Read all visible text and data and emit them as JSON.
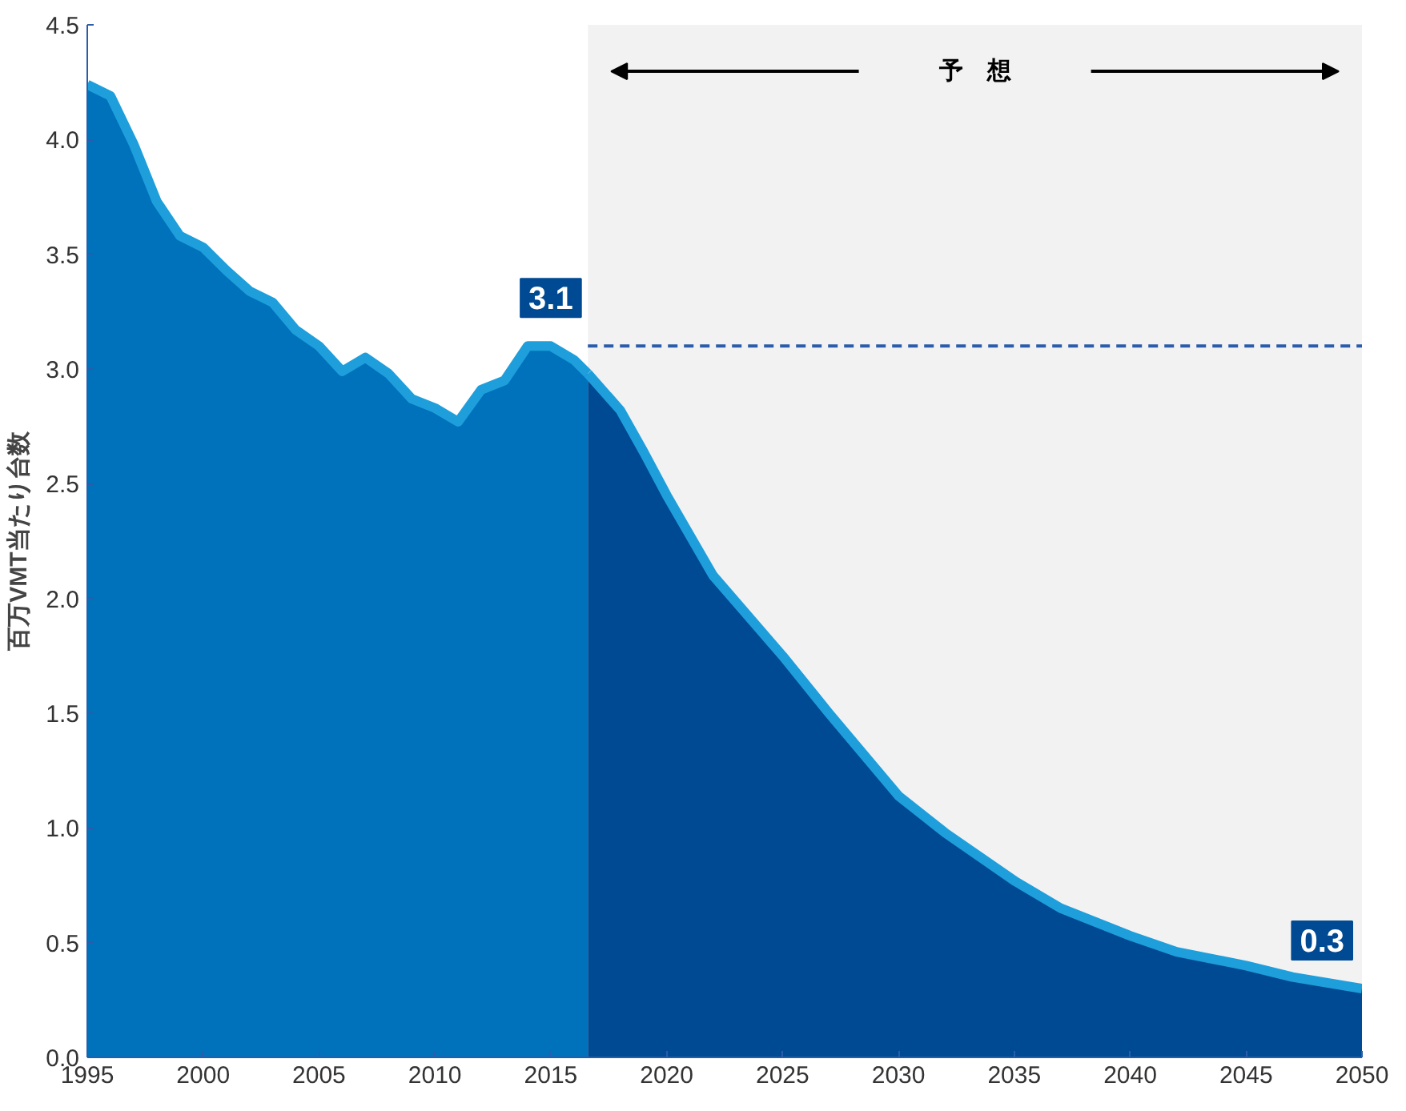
{
  "chart_data": {
    "type": "area",
    "ylabel": "百万VMT当たり台数",
    "series": [
      {
        "color": "#0072bc",
        "x": [
          1995,
          1996,
          1997,
          1998,
          1999,
          2000,
          2001,
          2002,
          2003,
          2004,
          2005,
          2006,
          2007,
          2008,
          2009,
          2010,
          2011,
          2012,
          2013,
          2014,
          2015,
          2016,
          2016.6
        ],
        "values": [
          4.24,
          4.19,
          3.98,
          3.73,
          3.58,
          3.53,
          3.43,
          3.34,
          3.29,
          3.17,
          3.1,
          2.99,
          3.05,
          2.98,
          2.87,
          2.83,
          2.77,
          2.91,
          2.95,
          3.1,
          3.1,
          3.04,
          2.98
        ],
        "value_labels": [
          null,
          null,
          null,
          null,
          null,
          null,
          null,
          null,
          null,
          null,
          null,
          null,
          null,
          null,
          null,
          null,
          null,
          null,
          null,
          null,
          "3.1",
          null,
          null
        ]
      },
      {
        "color": "#004a93",
        "x": [
          2016.6,
          2018,
          2019,
          2020,
          2022,
          2025,
          2027,
          2030,
          2032,
          2035,
          2037,
          2040,
          2042,
          2045,
          2047,
          2050
        ],
        "values": [
          2.98,
          2.82,
          2.64,
          2.45,
          2.1,
          1.75,
          1.5,
          1.14,
          0.98,
          0.77,
          0.65,
          0.53,
          0.46,
          0.4,
          0.35,
          0.3
        ],
        "value_labels": [
          null,
          null,
          null,
          null,
          null,
          null,
          null,
          null,
          null,
          null,
          null,
          null,
          null,
          null,
          null,
          "0.3"
        ]
      }
    ],
    "xlim": [
      1995,
      2050
    ],
    "ylim": [
      0,
      4.5
    ],
    "xticks": [
      1995,
      2000,
      2005,
      2010,
      2015,
      2020,
      2025,
      2030,
      2035,
      2040,
      2045,
      2050
    ],
    "yticks": [
      {
        "value": 0,
        "label": "0.0"
      },
      0.5,
      {
        "value": 1,
        "label": "1.0"
      },
      1.5,
      {
        "value": 2,
        "label": "2.0"
      },
      2.5,
      {
        "value": 3,
        "label": "3.0"
      },
      3.5,
      {
        "value": 4,
        "label": "4.0"
      },
      4.5
    ],
    "bands": [
      {
        "axis": "x",
        "from": 2016.6,
        "to": 2050,
        "label": "予　想",
        "color": "#f2f2f2"
      }
    ],
    "ref_lines": [
      {
        "axis": "y",
        "value": 3.1,
        "color": "#2a5caa",
        "line_style": "dashed"
      }
    ],
    "grid": false
  }
}
